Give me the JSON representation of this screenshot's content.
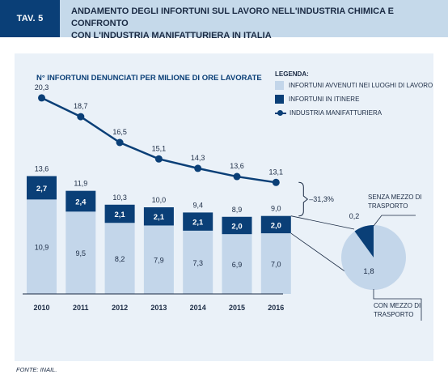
{
  "header": {
    "tag": "TAV. 5",
    "title_line1": "ANDAMENTO DEGLI INFORTUNI SUL LAVORO NELL'INDUSTRIA CHIMICA E CONFRONTO",
    "title_line2": "CON L'INDUSTRIA MANIFATTURIERA IN ITALIA"
  },
  "legend": {
    "title": "LEGENDA:",
    "items": [
      "INFORTUNI AVVENUTI NEI LUOGHI DI LAVORO",
      "INFORTUNI IN ITINERE",
      "INDUSTRIA MANIFATTURIERA"
    ]
  },
  "source": "FONTE: INAIL.",
  "colors": {
    "dark": "#0a3f77",
    "light": "#c3d6ea",
    "panel": "#eaf1f8"
  },
  "chart_data": [
    {
      "type": "bar",
      "title": "N° INFORTUNI DENUNCIATI PER MILIONE DI ORE LAVORATE",
      "categories": [
        "2010",
        "2011",
        "2012",
        "2013",
        "2014",
        "2015",
        "2016"
      ],
      "series": [
        {
          "name": "INFORTUNI AVVENUTI NEI LUOGHI DI LAVORO",
          "values": [
            10.9,
            9.5,
            8.2,
            7.9,
            7.3,
            6.9,
            7.0
          ],
          "labels": [
            "10,9",
            "9,5",
            "8,2",
            "7,9",
            "7,3",
            "6,9",
            "7,0"
          ]
        },
        {
          "name": "INFORTUNI IN ITINERE",
          "values": [
            2.7,
            2.4,
            2.1,
            2.1,
            2.1,
            2.0,
            2.0
          ],
          "labels": [
            "2,7",
            "2,4",
            "2,1",
            "2,1",
            "2,1",
            "2,0",
            "2,0"
          ]
        }
      ],
      "totals": [
        13.6,
        11.9,
        10.3,
        10.0,
        9.4,
        8.9,
        9.0
      ],
      "total_labels": [
        "13,6",
        "11,9",
        "10,3",
        "10,0",
        "9,4",
        "8,9",
        "9,0"
      ],
      "stacked": true
    },
    {
      "type": "line",
      "x": [
        "2010",
        "2011",
        "2012",
        "2013",
        "2014",
        "2015",
        "2016"
      ],
      "series": [
        {
          "name": "INDUSTRIA MANIFATTURIERA",
          "values": [
            20.3,
            18.7,
            16.5,
            15.1,
            14.3,
            13.6,
            13.1
          ],
          "labels": [
            "20,3",
            "18,7",
            "16,5",
            "15,1",
            "14,3",
            "13,6",
            "13,1"
          ]
        }
      ],
      "annotation": "–31,3%"
    },
    {
      "type": "pie",
      "categories": [
        "SENZA MEZZO DI TRASPORTO",
        "CON MEZZO DI TRASPORTO"
      ],
      "values": [
        0.2,
        1.8
      ],
      "labels": [
        "0,2",
        "1,8"
      ]
    }
  ]
}
